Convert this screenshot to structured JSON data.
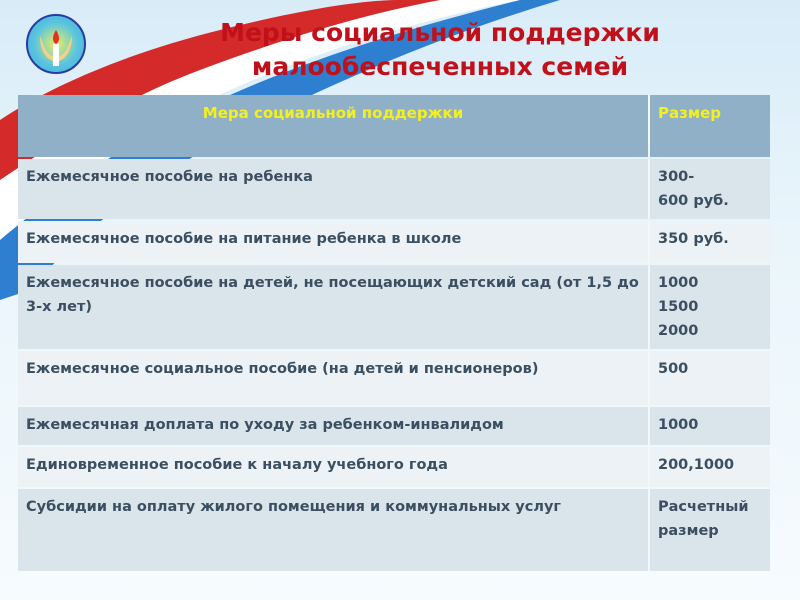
{
  "title_line1": "Меры социальной поддержки",
  "title_line2": "малообеспеченных семей",
  "logo_icon": "hands-candle-emblem-icon",
  "table": {
    "headers": [
      "Мера социальной поддержки",
      "Размер"
    ],
    "rows": [
      {
        "measure": "Ежемесячное пособие на ребенка",
        "amount": "300-\n600 руб."
      },
      {
        "measure": "Ежемесячное пособие на питание ребенка в школе",
        "amount": "350 руб."
      },
      {
        "measure": "Ежемесячное пособие на детей, не посещающих детский сад (от 1,5 до 3-х лет)",
        "amount": "1000\n1500\n2000"
      },
      {
        "measure": "Ежемесячное социальное пособие (на детей и пенсионеров)",
        "amount": "500"
      },
      {
        "measure": "Ежемесячная доплата по уходу за ребенком-инвалидом",
        "amount": "1000"
      },
      {
        "measure": "Единовременное пособие к началу учебного года",
        "amount": "200,1000"
      },
      {
        "measure": "Субсидии на оплату жилого помещения и коммунальных услуг",
        "amount": "Расчетный размер"
      }
    ]
  },
  "colors": {
    "title": "#c0101a",
    "header_bg": "#8fb0c6",
    "header_text": "#f4f020",
    "row_text": "#3b4f60"
  }
}
